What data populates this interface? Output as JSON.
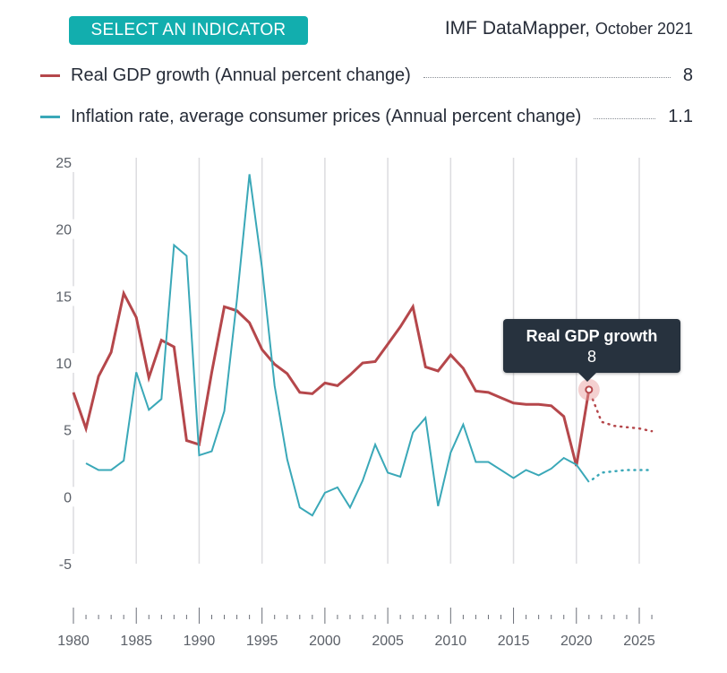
{
  "header": {
    "select_button": "SELECT AN INDICATOR",
    "source_name": "IMF DataMapper,",
    "source_date": "October 2021"
  },
  "legend": [
    {
      "label": "Real GDP growth (Annual percent change)",
      "value": "8",
      "color": "#b5474b"
    },
    {
      "label": "Inflation rate, average consumer prices (Annual percent change)",
      "value": "1.1",
      "color": "#3aa8b8"
    }
  ],
  "tooltip": {
    "title": "Real GDP growth",
    "value": "8"
  },
  "chart_data": {
    "type": "line",
    "title": "",
    "xlabel": "",
    "ylabel": "",
    "ylim": [
      -5,
      25
    ],
    "yticks": [
      25,
      20,
      15,
      10,
      5,
      0,
      -5
    ],
    "xlim": [
      1980,
      2026
    ],
    "xticks": [
      1980,
      1985,
      1990,
      1995,
      2000,
      2005,
      2010,
      2015,
      2020,
      2025
    ],
    "grid": "vertical every 5 years",
    "legend_position": "top",
    "projection_start": 2021,
    "highlight": {
      "series": "Real GDP growth",
      "x": 2021,
      "y": 8
    },
    "series": [
      {
        "name": "Real GDP growth (Annual percent change)",
        "color": "#b5474b",
        "x": [
          1980,
          1981,
          1982,
          1983,
          1984,
          1985,
          1986,
          1987,
          1988,
          1989,
          1990,
          1991,
          1992,
          1993,
          1994,
          1995,
          1996,
          1997,
          1998,
          1999,
          2000,
          2001,
          2002,
          2003,
          2004,
          2005,
          2006,
          2007,
          2008,
          2009,
          2010,
          2011,
          2012,
          2013,
          2014,
          2015,
          2016,
          2017,
          2018,
          2019,
          2020,
          2021,
          2022,
          2023,
          2024,
          2025,
          2026
        ],
        "values": [
          7.8,
          5.1,
          9.0,
          10.8,
          15.2,
          13.4,
          8.9,
          11.7,
          11.2,
          4.2,
          3.9,
          9.3,
          14.2,
          13.9,
          13.0,
          11.0,
          9.9,
          9.2,
          7.8,
          7.7,
          8.5,
          8.3,
          9.1,
          10.0,
          10.1,
          11.4,
          12.7,
          14.2,
          9.7,
          9.4,
          10.6,
          9.6,
          7.9,
          7.8,
          7.4,
          7.0,
          6.9,
          6.9,
          6.8,
          6.0,
          2.3,
          8.0,
          5.6,
          5.3,
          5.2,
          5.1,
          4.9
        ]
      },
      {
        "name": "Inflation rate, average consumer prices (Annual percent change)",
        "color": "#3aa8b8",
        "x": [
          1981,
          1982,
          1983,
          1984,
          1985,
          1986,
          1987,
          1988,
          1989,
          1990,
          1991,
          1992,
          1993,
          1994,
          1995,
          1996,
          1997,
          1998,
          1999,
          2000,
          2001,
          2002,
          2003,
          2004,
          2005,
          2006,
          2007,
          2008,
          2009,
          2010,
          2011,
          2012,
          2013,
          2014,
          2015,
          2016,
          2017,
          2018,
          2019,
          2020,
          2021,
          2022,
          2023,
          2024,
          2025,
          2026
        ],
        "values": [
          2.5,
          2.0,
          2.0,
          2.7,
          9.3,
          6.5,
          7.3,
          18.8,
          18.0,
          3.1,
          3.4,
          6.4,
          14.7,
          24.1,
          17.1,
          8.3,
          2.8,
          -0.8,
          -1.4,
          0.3,
          0.7,
          -0.8,
          1.2,
          3.9,
          1.8,
          1.5,
          4.8,
          5.9,
          -0.7,
          3.3,
          5.4,
          2.6,
          2.6,
          2.0,
          1.4,
          2.0,
          1.6,
          2.1,
          2.9,
          2.4,
          1.1,
          1.8,
          1.9,
          2.0,
          2.0,
          2.0
        ]
      }
    ]
  }
}
